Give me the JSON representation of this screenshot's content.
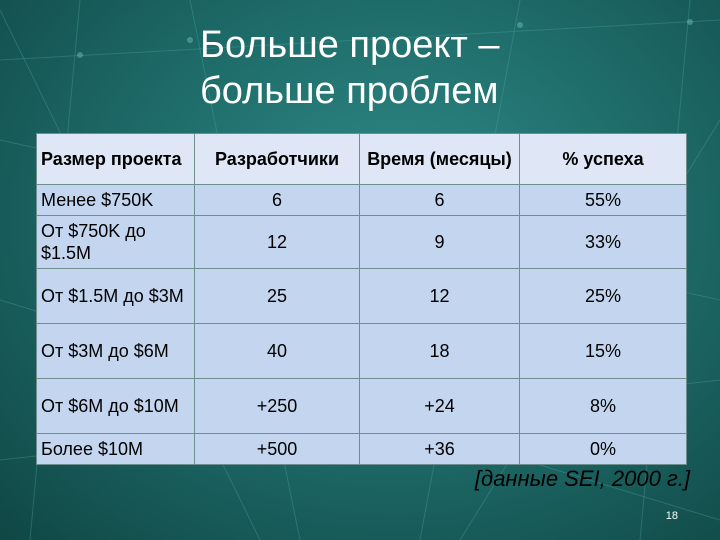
{
  "slide": {
    "title_line1": "Больше проект –",
    "title_line2": "больше проблем",
    "source": "[данные SEI, 2000 г.]",
    "page_number": "18"
  },
  "table": {
    "headers": [
      "Размер проекта",
      "Разработчики",
      "Время (месяцы)",
      "% успеха"
    ],
    "rows": [
      [
        "Менее $750K",
        "6",
        "6",
        "55%"
      ],
      [
        "От $750K до $1.5M",
        "12",
        "9",
        "33%"
      ],
      [
        "От $1.5M до $3M",
        "25",
        "12",
        "25%"
      ],
      [
        "От $3M до $6M",
        "40",
        "18",
        "15%"
      ],
      [
        "От $6M до $10M",
        "+250",
        "+24",
        "8%"
      ],
      [
        "Более $10M",
        "+500",
        "+36",
        "0%"
      ]
    ]
  },
  "colors": {
    "background": "#1f6d6b",
    "header_cell": "#dfe7f6",
    "body_cell": "#c4d6ef"
  }
}
